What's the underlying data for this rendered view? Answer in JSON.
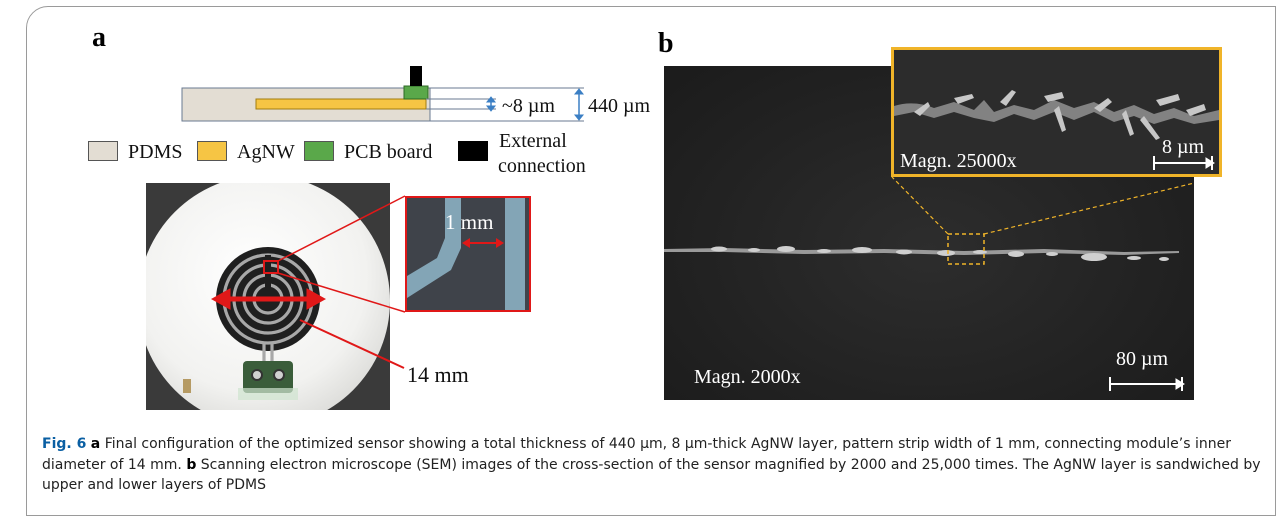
{
  "panel_a": {
    "letter": "a",
    "thickness_small": "~8 µm",
    "thickness_total": "440 µm",
    "legend": [
      {
        "label": "PDMS",
        "color": "#e3ddd3"
      },
      {
        "label": "AgNW",
        "color": "#f6c544"
      },
      {
        "label": "PCB board",
        "color": "#5aa84a"
      },
      {
        "label": "External",
        "label2": "connection",
        "color": "#000000"
      }
    ],
    "inset_label": "1 mm",
    "diameter_label": "14 mm"
  },
  "panel_b": {
    "letter": "b",
    "inset_magnification": "Magn. 25000x",
    "inset_scale": "8 µm",
    "main_magnification": "Magn. 2000x",
    "main_scale": "80 µm"
  },
  "caption": {
    "fig_label": "Fig. 6",
    "a_letter": "a",
    "a_text": "Final configuration of the optimized sensor showing a total thickness of 440 µm, 8 µm-thick AgNW layer, pattern strip width of 1 mm, connecting module’s inner diameter of 14 mm.",
    "b_letter": "b",
    "b_text": "Scanning electron microscope (SEM) images of the cross-section of the sensor magnified by 2000 and 25,000 times. The AgNW layer is sandwiched by upper and lower layers of PDMS"
  },
  "colors": {
    "accent_orange": "#f0b429",
    "arrow_red": "#e01818",
    "arrow_blue": "#3b7fc4"
  }
}
